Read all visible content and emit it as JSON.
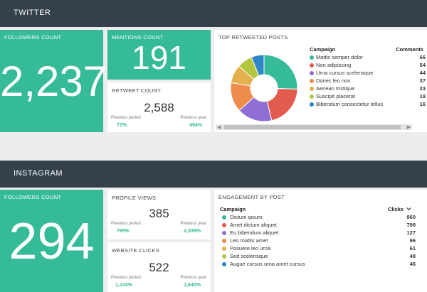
{
  "twitter": {
    "header": "TWITTER",
    "followers": {
      "title": "FOLLOWERS COUNT",
      "value": "2,237"
    },
    "mentions": {
      "title": "MENTIONS COUNT",
      "value": "191"
    },
    "retweet": {
      "title": "RETWEET COUNT",
      "value": "2,588",
      "prev_period_label": "Previous period",
      "prev_period_value": "77%",
      "prev_year_label": "Previous year",
      "prev_year_value": "494%"
    },
    "top_retweeted": {
      "title": "TOP RETWEETED POSTS",
      "col_campaign": "Campaign",
      "col_comments": "Comments",
      "rows": [
        {
          "label": "Mattis semper dolor",
          "value": "66",
          "color": "#35bb98"
        },
        {
          "label": "Non adipiscing",
          "value": "54",
          "color": "#e25b4f"
        },
        {
          "label": "Urna cursus scelerisque",
          "value": "44",
          "color": "#8f6ed5"
        },
        {
          "label": "Donec leo non",
          "value": "37",
          "color": "#ee8c4b"
        },
        {
          "label": "Aenean tristique",
          "value": "23",
          "color": "#e3b04b"
        },
        {
          "label": "Suscipit placerat",
          "value": "19",
          "color": "#b2c53c"
        },
        {
          "label": "Bibendum consectetur tellus",
          "value": "16",
          "color": "#2f86c6"
        }
      ]
    }
  },
  "instagram": {
    "header": "INSTAGRAM",
    "followers": {
      "title": "FOLLOWERS COUNT",
      "value": "294"
    },
    "profile_views": {
      "title": "PROFILE VIEWS",
      "value": "385",
      "prev_period_label": "Previous period",
      "prev_period_value": "795%",
      "prev_year_label": "Previous year",
      "prev_year_value": "2,039%"
    },
    "website_clicks": {
      "title": "WEBSITE CLICKS",
      "value": "522",
      "prev_period_label": "Previous period",
      "prev_period_value": "1,143%",
      "prev_year_label": "Previous year",
      "prev_year_value": "1,640%"
    },
    "engagement": {
      "title": "ENGAGEMENT BY POST",
      "col_campaign": "Campaign",
      "col_clicks": "Clicks",
      "sort_icon": "chevron-down-icon",
      "rows": [
        {
          "label": "Dictum ipsum",
          "value": "960",
          "color": "#35bb98"
        },
        {
          "label": "Amet dictum aliquet",
          "value": "798",
          "color": "#e25b4f"
        },
        {
          "label": "Eu bibendum aliquet",
          "value": "127",
          "color": "#8f6ed5"
        },
        {
          "label": "Leo mattis amet",
          "value": "96",
          "color": "#ee8c4b"
        },
        {
          "label": "Posuere leo urna",
          "value": "61",
          "color": "#e3b04b"
        },
        {
          "label": "Sed scelerisque",
          "value": "48",
          "color": "#b2c53c"
        },
        {
          "label": "Augue cursus urna amet cursus",
          "value": "46",
          "color": "#2f86c6"
        }
      ]
    }
  }
}
